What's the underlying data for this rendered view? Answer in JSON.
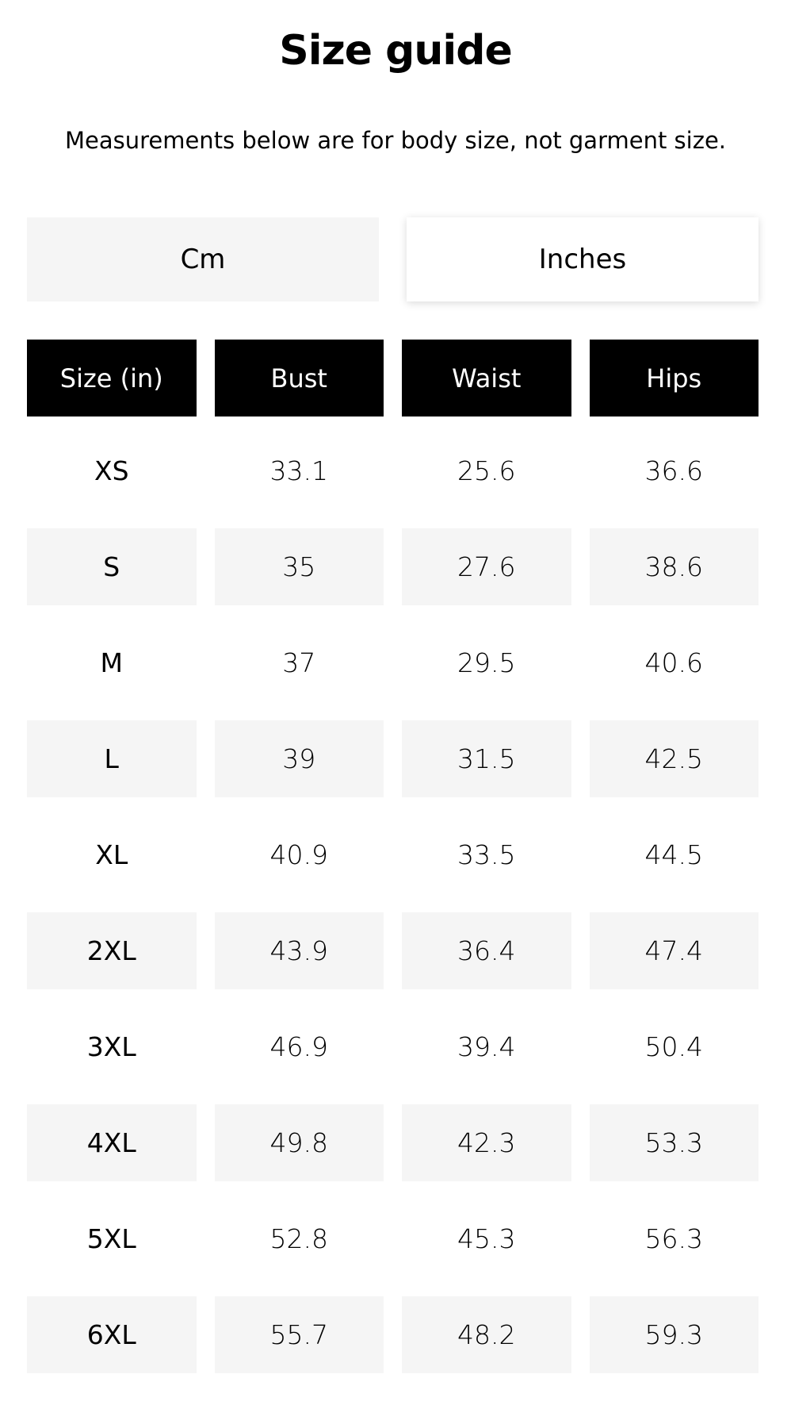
{
  "title": "Size guide",
  "subtitle": "Measurements below are for body size, not garment size.",
  "units": {
    "options": [
      "Cm",
      "Inches"
    ],
    "selected": "Inches"
  },
  "table": {
    "headers": [
      "Size (in)",
      "Bust",
      "Waist",
      "Hips"
    ],
    "rows": [
      [
        "XS",
        "33.1",
        "25.6",
        "36.6"
      ],
      [
        "S",
        "35",
        "27.6",
        "38.6"
      ],
      [
        "M",
        "37",
        "29.5",
        "40.6"
      ],
      [
        "L",
        "39",
        "31.5",
        "42.5"
      ],
      [
        "XL",
        "40.9",
        "33.5",
        "44.5"
      ],
      [
        "2XL",
        "43.9",
        "36.4",
        "47.4"
      ],
      [
        "3XL",
        "46.9",
        "39.4",
        "50.4"
      ],
      [
        "4XL",
        "49.8",
        "42.3",
        "53.3"
      ],
      [
        "5XL",
        "52.8",
        "45.3",
        "56.3"
      ],
      [
        "6XL",
        "55.7",
        "48.2",
        "59.3"
      ]
    ]
  },
  "colors": {
    "header_bg": "#000000",
    "alt_row_bg": "#f5f5f5"
  }
}
